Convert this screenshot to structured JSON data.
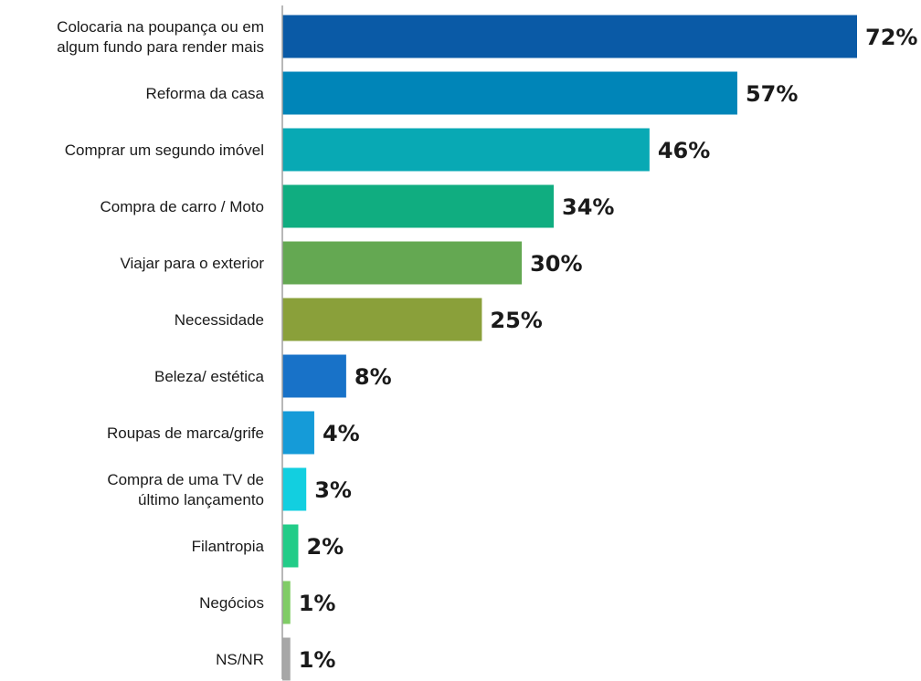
{
  "chart_data": {
    "type": "bar",
    "orientation": "horizontal",
    "title": "",
    "xlabel": "",
    "ylabel": "",
    "unit": "%",
    "xlim": [
      0,
      72
    ],
    "grid": false,
    "legend": "none",
    "categories": [
      [
        "Colocaria na poupança ou em",
        "algum fundo para render mais"
      ],
      [
        "Reforma da casa"
      ],
      [
        "Comprar um segundo imóvel"
      ],
      [
        "Compra de carro / Moto"
      ],
      [
        "Viajar para o exterior"
      ],
      [
        "Necessidade"
      ],
      [
        "Beleza/ estética"
      ],
      [
        "Roupas de marca/grife"
      ],
      [
        "Compra de uma TV de",
        "último lançamento"
      ],
      [
        "Filantropia"
      ],
      [
        "Negócios"
      ],
      [
        "NS/NR"
      ]
    ],
    "values": [
      72,
      57,
      46,
      34,
      30,
      25,
      8,
      4,
      3,
      2,
      1,
      1
    ],
    "value_labels": [
      "72%",
      "57%",
      "46%",
      "34%",
      "30%",
      "25%",
      "8%",
      "4%",
      "3%",
      "2%",
      "1%",
      "1%"
    ],
    "colors": [
      "#0a5aa6",
      "#0085b8",
      "#08a9b4",
      "#10ad80",
      "#64a852",
      "#8aa03a",
      "#1872c8",
      "#159bd8",
      "#12cfe0",
      "#22cc88",
      "#80cc66",
      "#a7a7a7"
    ],
    "axis_color": "#a0a0a0"
  }
}
